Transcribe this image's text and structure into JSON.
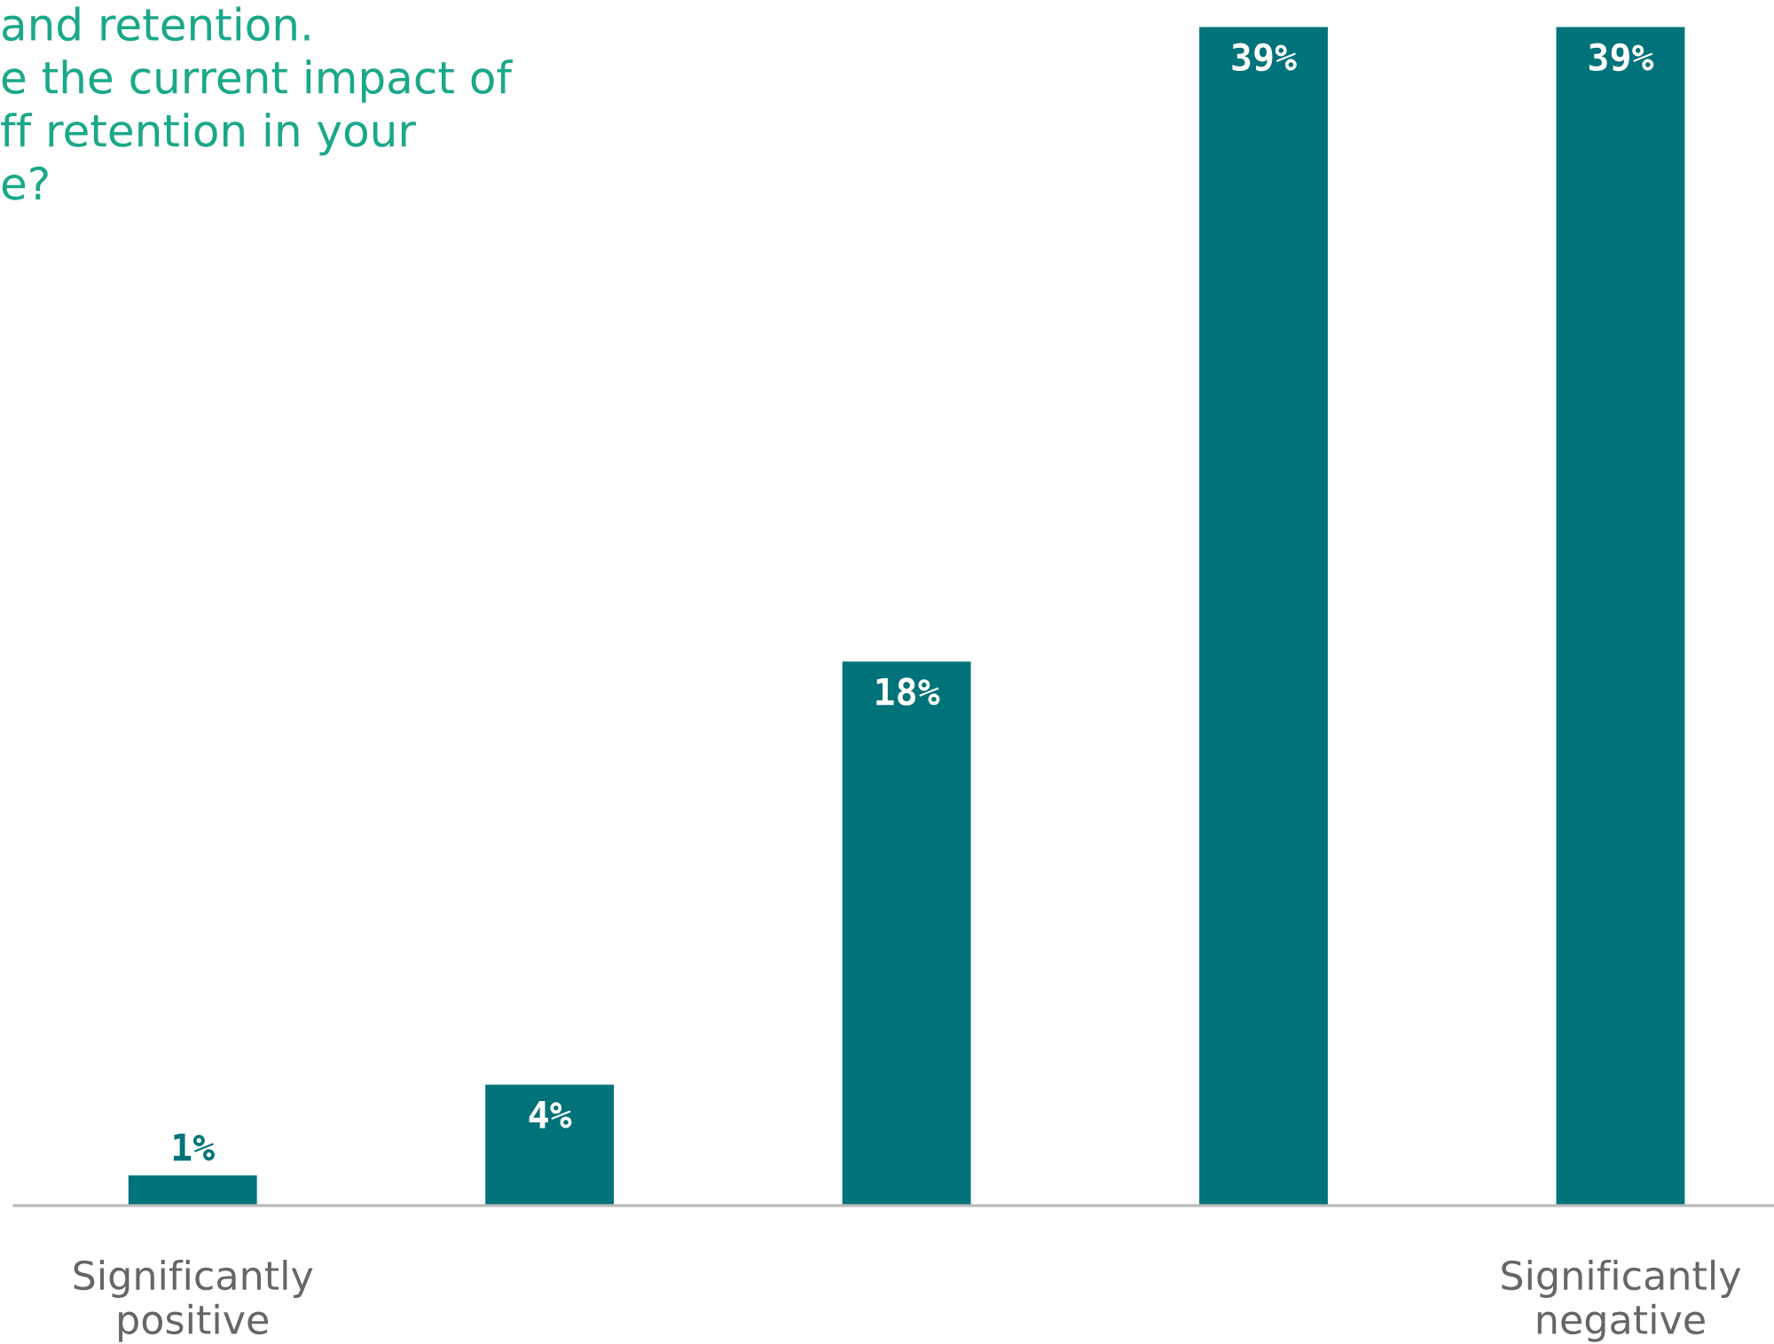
{
  "chart_data": {
    "type": "bar",
    "title": "and retention.\ne the current impact of\nff retention in your\ne?",
    "categories": [
      "Significantly\npositive",
      null,
      null,
      null,
      "Significantly\nnegative"
    ],
    "values": [
      1,
      4,
      18,
      39,
      39
    ],
    "value_labels": [
      "1%",
      "4%",
      "18%",
      "39%",
      "39%"
    ],
    "color": "#00737a",
    "grid": false,
    "legend": false
  }
}
